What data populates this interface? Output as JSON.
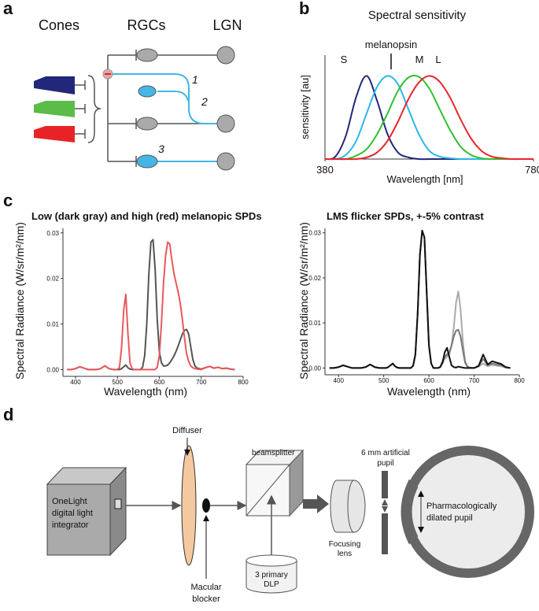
{
  "panel_labels": [
    "a",
    "b",
    "c",
    "d"
  ],
  "panel_a": {
    "headers": [
      "Cones",
      "RGCs",
      "LGN"
    ],
    "pathway_labels": [
      "1",
      "2",
      "3"
    ]
  },
  "chart_data": [
    {
      "type": "line",
      "title": "Spectral sensitivity",
      "xlabel": "Wavelength [nm]",
      "ylabel": "sensitivity [au]",
      "x": [
        380,
        400,
        420,
        440,
        460,
        480,
        500,
        520,
        540,
        560,
        580,
        600,
        620,
        640,
        660,
        680,
        700,
        720,
        740,
        760,
        780
      ],
      "series": [
        {
          "name": "S",
          "color": "#22277a",
          "values": [
            0,
            0.03,
            0.28,
            0.75,
            1.0,
            0.7,
            0.3,
            0.08,
            0.02,
            0,
            0,
            0,
            0,
            0,
            0,
            0,
            0,
            0,
            0,
            0,
            0
          ]
        },
        {
          "name": "melanopsin",
          "color": "#2bb7ea",
          "values": [
            0,
            0,
            0.05,
            0.22,
            0.55,
            0.87,
            1.0,
            0.9,
            0.6,
            0.3,
            0.1,
            0.03,
            0.01,
            0,
            0,
            0,
            0,
            0,
            0,
            0,
            0
          ]
        },
        {
          "name": "M",
          "color": "#2fc02f",
          "values": [
            0,
            0,
            0,
            0.04,
            0.12,
            0.3,
            0.55,
            0.82,
            0.98,
            0.99,
            0.85,
            0.6,
            0.35,
            0.15,
            0.05,
            0.01,
            0,
            0,
            0,
            0,
            0
          ]
        },
        {
          "name": "L",
          "color": "#e8262a",
          "values": [
            0,
            0,
            0,
            0,
            0.02,
            0.08,
            0.22,
            0.45,
            0.72,
            0.92,
            1.0,
            0.93,
            0.74,
            0.48,
            0.25,
            0.1,
            0.03,
            0.01,
            0,
            0,
            0
          ]
        }
      ],
      "xlim": [
        380,
        780
      ],
      "xticks": [
        380,
        780
      ],
      "ylim": [
        0,
        1.25
      ]
    },
    {
      "type": "line",
      "title": "Low (dark gray) and high (red) melanopic SPDs",
      "xlabel": "Wavelength (nm)",
      "ylabel": "Spectral Radiance (W/sr/m²/nm)",
      "x": [
        380,
        390,
        400,
        410,
        420,
        430,
        440,
        450,
        460,
        470,
        480,
        490,
        500,
        505,
        510,
        515,
        520,
        525,
        530,
        535,
        540,
        545,
        550,
        555,
        560,
        565,
        570,
        575,
        580,
        585,
        590,
        595,
        600,
        605,
        610,
        615,
        620,
        625,
        630,
        635,
        640,
        645,
        650,
        655,
        660,
        665,
        670,
        675,
        680,
        685,
        690,
        700,
        710,
        720,
        730,
        740,
        750,
        760,
        770,
        780
      ],
      "series": [
        {
          "color": "#555555",
          "values": [
            0,
            0,
            0.0002,
            0.0006,
            0.0003,
            0,
            0,
            0,
            0.0002,
            0.0008,
            0.0002,
            0,
            0,
            0,
            0.0002,
            0.0006,
            0.001,
            0.0004,
            0.0001,
            0,
            0,
            0,
            0,
            0,
            0.0005,
            0.003,
            0.01,
            0.021,
            0.028,
            0.0285,
            0.022,
            0.011,
            0.004,
            0.0015,
            0.0008,
            0.0008,
            0.001,
            0.0015,
            0.0022,
            0.003,
            0.004,
            0.0052,
            0.0065,
            0.0078,
            0.0086,
            0.0088,
            0.0078,
            0.005,
            0.0022,
            0.0008,
            0.0003,
            0.0001,
            0.0004,
            0.0007,
            0.0003,
            0.0005,
            0.0002,
            0.0003,
            0.0001,
            0
          ]
        },
        {
          "color": "#e8595c",
          "values": [
            0,
            0,
            0.0002,
            0.0006,
            0.0003,
            0,
            0,
            0,
            0.0002,
            0.0008,
            0.0002,
            0,
            0,
            0.0005,
            0.005,
            0.013,
            0.0165,
            0.008,
            0.0015,
            0.0002,
            0,
            0,
            0,
            0,
            0,
            0,
            0,
            0,
            0,
            0,
            0,
            0.0005,
            0.003,
            0.01,
            0.019,
            0.025,
            0.028,
            0.0275,
            0.024,
            0.021,
            0.019,
            0.017,
            0.0145,
            0.011,
            0.007,
            0.0035,
            0.0018,
            0.0008,
            0.0004,
            0.0002,
            0.0001,
            0,
            0.0004,
            0.0007,
            0.0003,
            0.0005,
            0.0002,
            0.0003,
            0.0001,
            0
          ]
        }
      ],
      "xlim": [
        370,
        800
      ],
      "xticks": [
        400,
        500,
        600,
        700,
        800
      ],
      "ylim": [
        -0.0015,
        0.031
      ],
      "yticks": [
        {
          "value": 0,
          "label": "0.00"
        },
        0.01,
        0.02,
        0.03
      ]
    },
    {
      "type": "line",
      "title": "LMS flicker SPDs, +-5% contrast",
      "xlabel": "Wavelength (nm)",
      "ylabel": "Spectral Radiance (W/sr/m²/nm)",
      "x": [
        380,
        390,
        400,
        410,
        420,
        430,
        440,
        450,
        460,
        470,
        480,
        490,
        500,
        505,
        510,
        515,
        520,
        525,
        530,
        535,
        540,
        545,
        550,
        555,
        560,
        565,
        570,
        575,
        580,
        585,
        590,
        595,
        600,
        605,
        610,
        615,
        620,
        625,
        630,
        635,
        640,
        645,
        650,
        655,
        660,
        665,
        670,
        675,
        680,
        685,
        690,
        700,
        710,
        720,
        730,
        740,
        750,
        760,
        770,
        780
      ],
      "series": [
        {
          "color": "#aaaaaa",
          "values": [
            0,
            0,
            0.0002,
            0.0006,
            0.0003,
            0,
            0,
            0,
            0.0002,
            0.0008,
            0.0002,
            0,
            0,
            0,
            0.0002,
            0.0006,
            0.001,
            0.0004,
            0.0001,
            0,
            0,
            0,
            0,
            0,
            0,
            0.0005,
            0.003,
            0.012,
            0.025,
            0.0305,
            0.029,
            0.017,
            0.005,
            0.001,
            0,
            0,
            0,
            0.0003,
            0.001,
            0.002,
            0.0025,
            0.003,
            0.005,
            0.009,
            0.0145,
            0.017,
            0.013,
            0.006,
            0.0015,
            0.0004,
            0.0001,
            0,
            0.0003,
            0.001,
            0.0004,
            0.0007,
            0.0005,
            0.0004,
            0.0001,
            0
          ]
        },
        {
          "color": "#777777",
          "values": [
            0,
            0,
            0.0002,
            0.0006,
            0.0003,
            0,
            0,
            0,
            0.0002,
            0.0008,
            0.0002,
            0,
            0,
            0,
            0.0002,
            0.0006,
            0.001,
            0.0004,
            0.0001,
            0,
            0,
            0,
            0,
            0,
            0,
            0.0005,
            0.003,
            0.012,
            0.025,
            0.0305,
            0.029,
            0.017,
            0.005,
            0.001,
            0,
            0,
            0,
            0.0003,
            0.0015,
            0.0025,
            0.003,
            0.0035,
            0.005,
            0.007,
            0.0083,
            0.0085,
            0.007,
            0.004,
            0.0012,
            0.0003,
            0.0001,
            0,
            0.0004,
            0.002,
            0.0006,
            0.001,
            0.0008,
            0.0006,
            0.0001,
            0
          ]
        },
        {
          "color": "#111111",
          "values": [
            0,
            0,
            0.0002,
            0.0006,
            0.0003,
            0,
            0,
            0,
            0.0002,
            0.0008,
            0.0002,
            0,
            0,
            0,
            0.0002,
            0.0006,
            0.001,
            0.0004,
            0.0001,
            0,
            0,
            0,
            0,
            0,
            0,
            0.0005,
            0.003,
            0.012,
            0.025,
            0.0305,
            0.029,
            0.017,
            0.005,
            0.001,
            0,
            0,
            0,
            0.0002,
            0.0012,
            0.0035,
            0.0045,
            0.0025,
            0.0006,
            0.0002,
            0.0001,
            0.0003,
            0.0002,
            0.0001,
            0,
            0,
            0,
            0,
            0.0005,
            0.003,
            0.0008,
            0.0015,
            0.0012,
            0.0009,
            0.0002,
            0
          ]
        }
      ],
      "xlim": [
        370,
        800
      ],
      "xticks": [
        400,
        500,
        600,
        700,
        800
      ],
      "ylim": [
        -0.0015,
        0.031
      ],
      "yticks": [
        {
          "value": 0,
          "label": "0.00"
        },
        0.01,
        0.02,
        0.03
      ]
    }
  ],
  "panel_d": {
    "light_source": [
      "OneLight",
      "digital light",
      "integrator"
    ],
    "diffuser": "Diffuser",
    "macular_blocker": [
      "Macular",
      "blocker"
    ],
    "beamsplitter": "beamsplitter",
    "dlp": [
      "3 primary",
      "DLP"
    ],
    "focusing_lens": [
      "Focusing",
      "lens"
    ],
    "artificial_pupil": [
      "6 mm artificial",
      "pupil"
    ],
    "eye": [
      "Pharmacologically",
      "dilated pupil"
    ]
  }
}
